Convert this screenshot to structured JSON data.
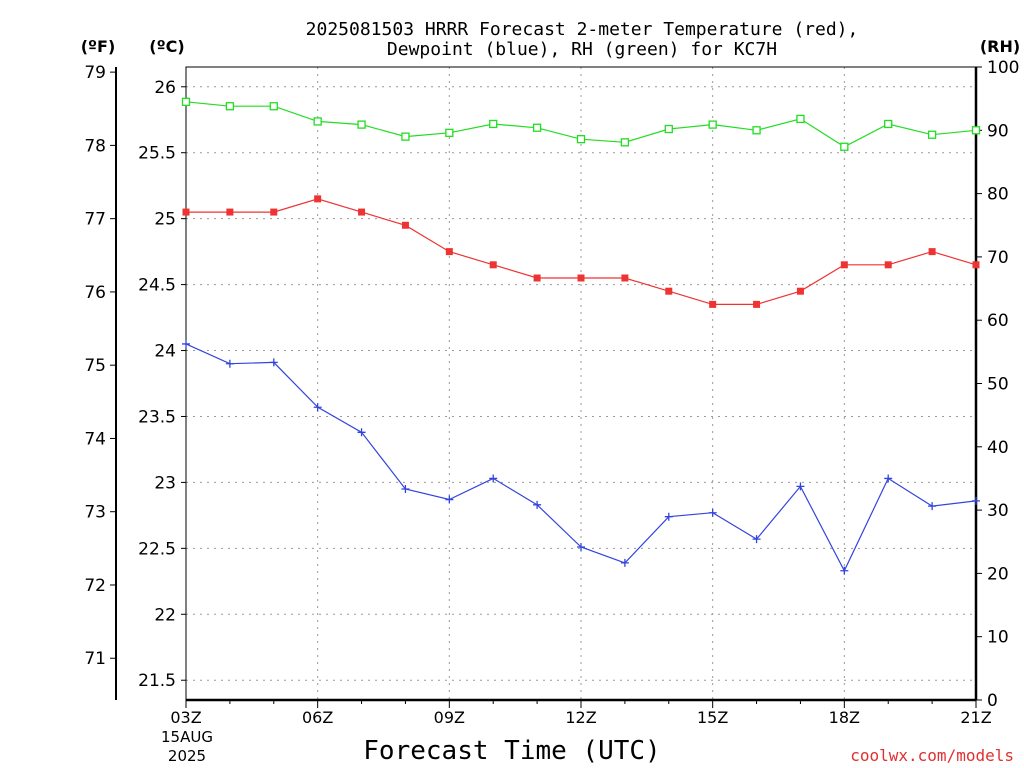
{
  "chart_data": {
    "type": "line",
    "title_line1": "2025081503 HRRR Forecast 2-meter Temperature (red),",
    "title_line2": "Dewpoint (blue), RH (green) for KC7H",
    "xlabel": "Forecast Time (UTC)",
    "unit_f": "(ºF)",
    "unit_c": "(ºC)",
    "unit_rh": "(RH)",
    "date_line1": "15AUG",
    "date_line2": "2025",
    "credit": "coolwx.com/models",
    "grid": true,
    "x_hours": [
      3,
      4,
      5,
      6,
      7,
      8,
      9,
      10,
      11,
      12,
      13,
      14,
      15,
      16,
      17,
      18,
      19,
      20,
      21
    ],
    "x_tick_labels": [
      {
        "hour": 3,
        "label": "03Z"
      },
      {
        "hour": 6,
        "label": "06Z"
      },
      {
        "hour": 9,
        "label": "09Z"
      },
      {
        "hour": 12,
        "label": "12Z"
      },
      {
        "hour": 15,
        "label": "15Z"
      },
      {
        "hour": 18,
        "label": "18Z"
      },
      {
        "hour": 21,
        "label": "21Z"
      }
    ],
    "xlim": [
      3,
      21
    ],
    "ylim_c": [
      21.35,
      26.15
    ],
    "ylim_rh": [
      0,
      100
    ],
    "yticks_c": [
      "21.5",
      "22",
      "22.5",
      "23",
      "23.5",
      "24",
      "24.5",
      "25",
      "25.5",
      "26"
    ],
    "yticks_f": [
      "71",
      "72",
      "73",
      "74",
      "75",
      "76",
      "77",
      "78",
      "79"
    ],
    "yticks_rh": [
      "0",
      "10",
      "20",
      "30",
      "40",
      "50",
      "60",
      "70",
      "80",
      "90",
      "100"
    ],
    "series": [
      {
        "name": "Temperature",
        "color": "#ee3333",
        "marker": "filled-square",
        "axis": "c",
        "values": [
          25.05,
          25.05,
          25.05,
          25.15,
          25.05,
          24.95,
          24.75,
          24.65,
          24.55,
          24.55,
          24.55,
          24.45,
          24.35,
          24.35,
          24.45,
          24.65,
          24.65,
          24.75,
          24.65
        ]
      },
      {
        "name": "Dewpoint",
        "color": "#3344dd",
        "marker": "plus",
        "axis": "c",
        "values": [
          24.05,
          23.9,
          23.91,
          23.57,
          23.38,
          22.95,
          22.87,
          23.03,
          22.83,
          22.51,
          22.39,
          22.74,
          22.77,
          22.57,
          22.97,
          22.33,
          23.03,
          22.82,
          22.86
        ]
      },
      {
        "name": "RH",
        "color": "#22dd22",
        "marker": "open-square",
        "axis": "rh",
        "values": [
          94.5,
          93.8,
          93.8,
          91.4,
          90.9,
          89.0,
          89.6,
          91.0,
          90.4,
          88.6,
          88.1,
          90.2,
          90.9,
          90.0,
          91.8,
          87.4,
          91.0,
          89.3,
          90.0
        ]
      }
    ]
  }
}
